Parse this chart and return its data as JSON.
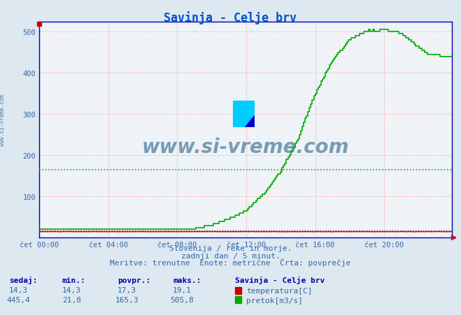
{
  "title": "Savinja - Celje brv",
  "title_color": "#0055cc",
  "background_color": "#dde8f0",
  "plot_bg_color": "#eef4f8",
  "grid_color_major": "#ff9999",
  "grid_color_minor": "#ffdddd",
  "xlabel_text1": "Slovenija / reke in morje.",
  "xlabel_text2": "zadnji dan / 5 minut.",
  "xlabel_text3": "Meritve: trenutne  Enote: metrične  Črta: povprečje",
  "legend_title": "Savinja - Celje brv",
  "legend_items": [
    "temperatura[C]",
    "pretok[m3/s]"
  ],
  "legend_colors": [
    "#cc0000",
    "#00aa00"
  ],
  "table_headers": [
    "sedaj:",
    "min.:",
    "povpr.:",
    "maks.:"
  ],
  "table_temp": [
    "14,3",
    "14,3",
    "17,3",
    "19,1"
  ],
  "table_flow": [
    "445,4",
    "21,8",
    "165,3",
    "505,8"
  ],
  "watermark": "www.si-vreme.com",
  "watermark_color": "#1a5580",
  "watermark_alpha": 0.55,
  "xticklabels": [
    "čet 00:00",
    "čet 04:00",
    "čet 08:00",
    "čet 12:00",
    "čet 16:00",
    "čet 20:00"
  ],
  "xtick_positions": [
    0,
    48,
    96,
    144,
    192,
    240
  ],
  "ylim": [
    0,
    525
  ],
  "yticks": [
    100,
    200,
    300,
    400,
    500
  ],
  "temp_min": 14.3,
  "temp_max": 19.1,
  "temp_avg": 17.3,
  "flow_min": 21.8,
  "flow_max": 505.8,
  "flow_avg": 165.3,
  "n_points": 288,
  "temp_color": "#cc0000",
  "flow_color": "#00aa00",
  "border_color": "#0000aa",
  "side_label": "www.si-vreme.com"
}
